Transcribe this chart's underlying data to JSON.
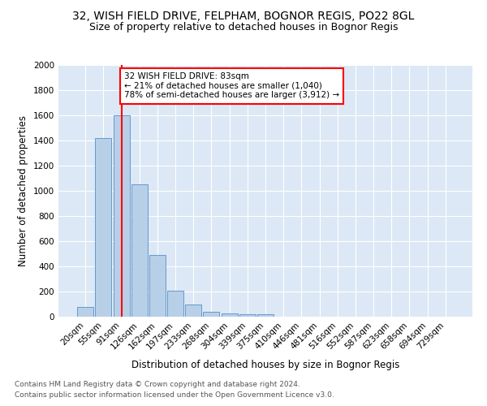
{
  "title1": "32, WISH FIELD DRIVE, FELPHAM, BOGNOR REGIS, PO22 8GL",
  "title2": "Size of property relative to detached houses in Bognor Regis",
  "xlabel": "Distribution of detached houses by size in Bognor Regis",
  "ylabel": "Number of detached properties",
  "footnote1": "Contains HM Land Registry data © Crown copyright and database right 2024.",
  "footnote2": "Contains public sector information licensed under the Open Government Licence v3.0.",
  "bar_labels": [
    "20sqm",
    "55sqm",
    "91sqm",
    "126sqm",
    "162sqm",
    "197sqm",
    "233sqm",
    "268sqm",
    "304sqm",
    "339sqm",
    "375sqm",
    "410sqm",
    "446sqm",
    "481sqm",
    "516sqm",
    "552sqm",
    "587sqm",
    "623sqm",
    "658sqm",
    "694sqm",
    "729sqm"
  ],
  "bar_values": [
    80,
    1420,
    1600,
    1050,
    490,
    205,
    100,
    38,
    28,
    20,
    18,
    0,
    0,
    0,
    0,
    0,
    0,
    0,
    0,
    0,
    0
  ],
  "bar_color": "#b8cfe8",
  "bar_edge_color": "#6699cc",
  "vline_x": 2,
  "vline_color": "red",
  "annotation_text": "32 WISH FIELD DRIVE: 83sqm\n← 21% of detached houses are smaller (1,040)\n78% of semi-detached houses are larger (3,912) →",
  "annotation_box_color": "white",
  "annotation_box_edge": "red",
  "ylim": [
    0,
    2000
  ],
  "yticks": [
    0,
    200,
    400,
    600,
    800,
    1000,
    1200,
    1400,
    1600,
    1800,
    2000
  ],
  "background_color": "#dce8f5",
  "title1_fontsize": 10,
  "title2_fontsize": 9,
  "xlabel_fontsize": 8.5,
  "ylabel_fontsize": 8.5,
  "tick_fontsize": 7.5,
  "annotation_fontsize": 7.5,
  "footnote_fontsize": 6.5
}
